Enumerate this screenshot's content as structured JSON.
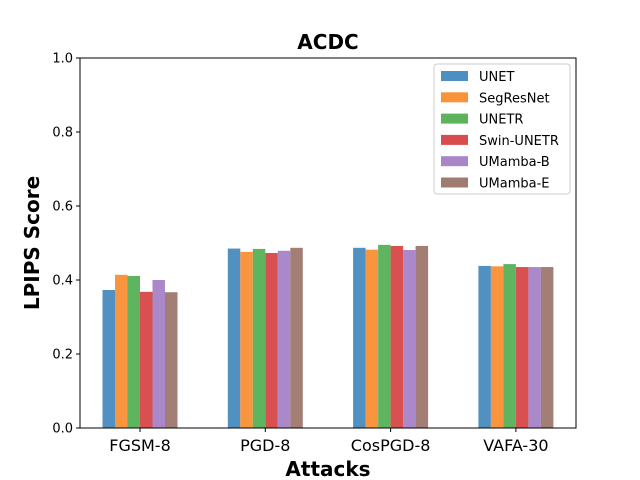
{
  "chart_data": {
    "type": "bar",
    "title": "ACDC",
    "xlabel": "Attacks",
    "ylabel": "LPIPS Score",
    "ylim": [
      0,
      1.0
    ],
    "yticks": [
      "0.0",
      "0.2",
      "0.4",
      "0.6",
      "0.8",
      "1.0"
    ],
    "categories": [
      "FGSM-8",
      "PGD-8",
      "CosPGD-8",
      "VAFA-30"
    ],
    "legend_position": "top-right",
    "series": [
      {
        "name": "UNET",
        "color": "#4c8fc0",
        "values": [
          0.373,
          0.485,
          0.487,
          0.438
        ]
      },
      {
        "name": "SegResNet",
        "color": "#f8933a",
        "values": [
          0.414,
          0.476,
          0.482,
          0.437
        ]
      },
      {
        "name": "UNETR",
        "color": "#5cb35c",
        "values": [
          0.411,
          0.484,
          0.495,
          0.443
        ]
      },
      {
        "name": "Swin-UNETR",
        "color": "#d84c4d",
        "values": [
          0.368,
          0.473,
          0.492,
          0.435
        ]
      },
      {
        "name": "UMamba-B",
        "color": "#a886c8",
        "values": [
          0.4,
          0.479,
          0.481,
          0.435
        ]
      },
      {
        "name": "UMamba-E",
        "color": "#a07b71",
        "values": [
          0.367,
          0.487,
          0.492,
          0.435
        ]
      }
    ]
  }
}
